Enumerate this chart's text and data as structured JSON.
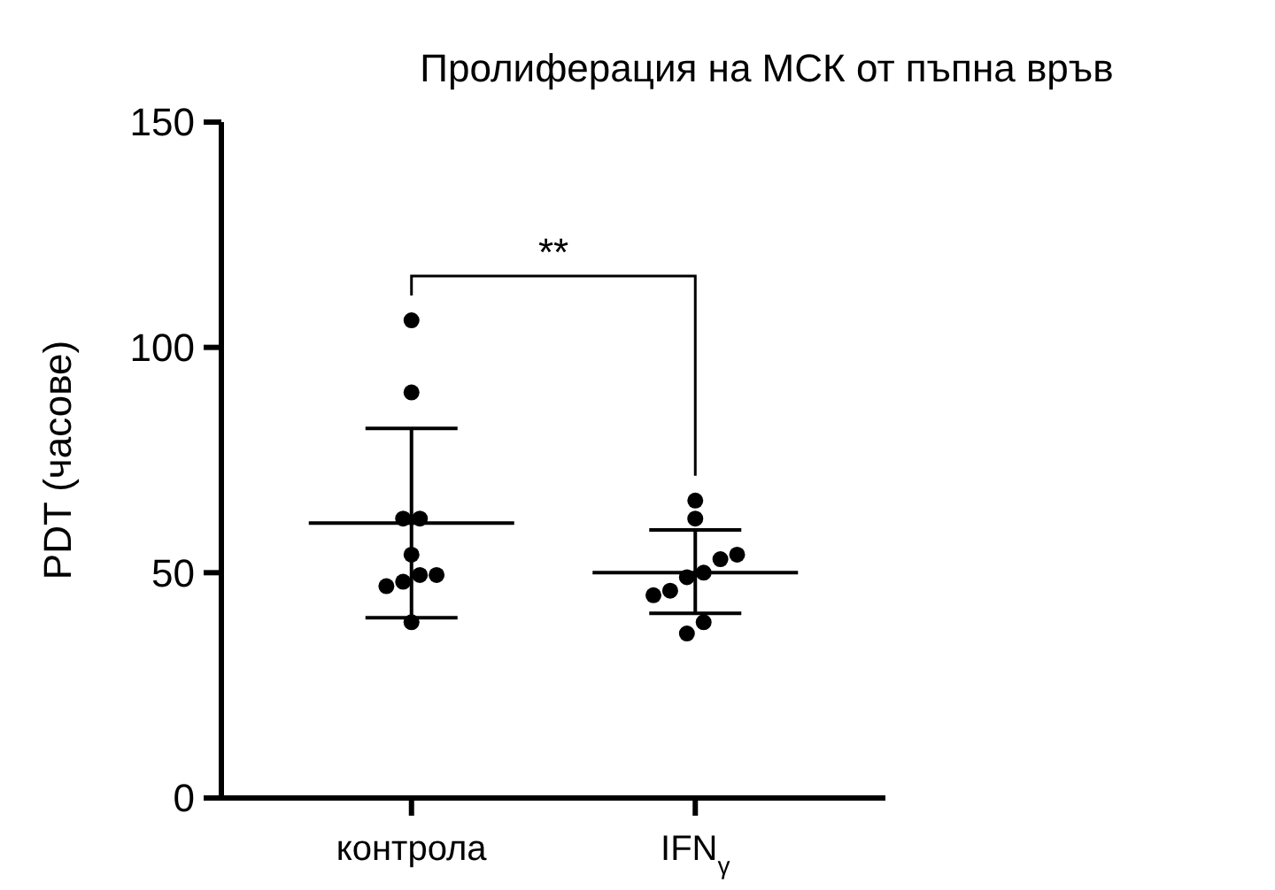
{
  "chart_data": {
    "type": "scatter",
    "title": "Пролиферация на МСК от пъпна връв",
    "ylabel": "PDT (часове)",
    "categories": [
      "контрола",
      "IFN$_{γ}$"
    ],
    "ylim": [
      0,
      150
    ],
    "yticks": [
      0,
      50,
      100,
      150
    ],
    "series": [
      {
        "marker": "circle",
        "color": "#000000",
        "x": [
          "контрола",
          "контрола",
          "контрола",
          "контрола",
          "контрола",
          "контрола",
          "контрола",
          "контрола",
          "контрола",
          "контрола",
          "IFN$_{γ}$",
          "IFN$_{γ}$",
          "IFN$_{γ}$",
          "IFN$_{γ}$",
          "IFN$_{γ}$",
          "IFN$_{γ}$",
          "IFN$_{γ}$",
          "IFN$_{γ}$",
          "IFN$_{γ}$",
          "IFN$_{γ}$"
        ],
        "values": [
          106,
          90,
          62,
          62,
          54,
          49.5,
          49.5,
          48,
          47,
          39,
          66,
          62,
          54,
          53,
          50,
          49,
          46,
          45,
          39,
          36.5
        ]
      },
      {
        "type": "box",
        "color": "#000000",
        "boxes": [
          {
            "low": 40,
            "q1": 61,
            "median": 61,
            "q3": 61,
            "high": 82
          },
          {
            "low": 41,
            "q1": 50,
            "median": 50,
            "q3": 50,
            "high": 59.5
          }
        ]
      }
    ],
    "annotations": [
      "**"
    ]
  }
}
